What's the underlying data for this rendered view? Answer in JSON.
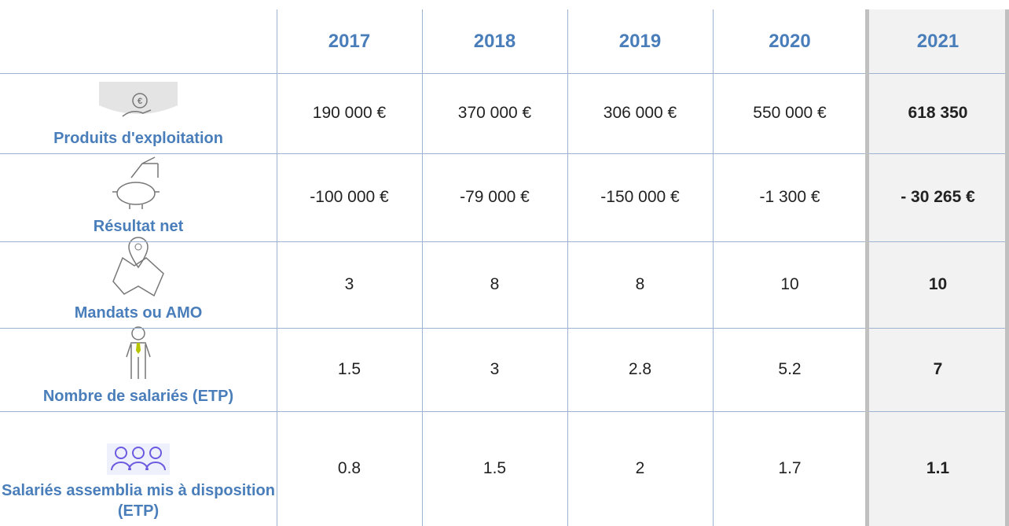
{
  "table": {
    "header": [
      "2017",
      "2018",
      "2019",
      "2020",
      "2021"
    ],
    "rows": [
      {
        "label": "Produits d'exploitation",
        "values": [
          "190 000 €",
          "370 000 €",
          "306 000 €",
          "550 000 €",
          "618 350"
        ]
      },
      {
        "label": "Résultat net",
        "values": [
          "-100 000 €",
          "-79 000 €",
          "-150 000 €",
          "-1 300 €",
          "- 30 265 €"
        ]
      },
      {
        "label": "Mandats ou AMO",
        "values": [
          "3",
          "8",
          "8",
          "10",
          "10"
        ]
      },
      {
        "label": "Nombre de salariés (ETP)",
        "values": [
          "1.5",
          "3",
          "2.8",
          "5.2",
          "7"
        ]
      },
      {
        "label": "Salariés assemblia mis à disposition (ETP)",
        "values": [
          "0.8",
          "1.5",
          "2",
          "1.7",
          "1.1"
        ]
      }
    ]
  }
}
